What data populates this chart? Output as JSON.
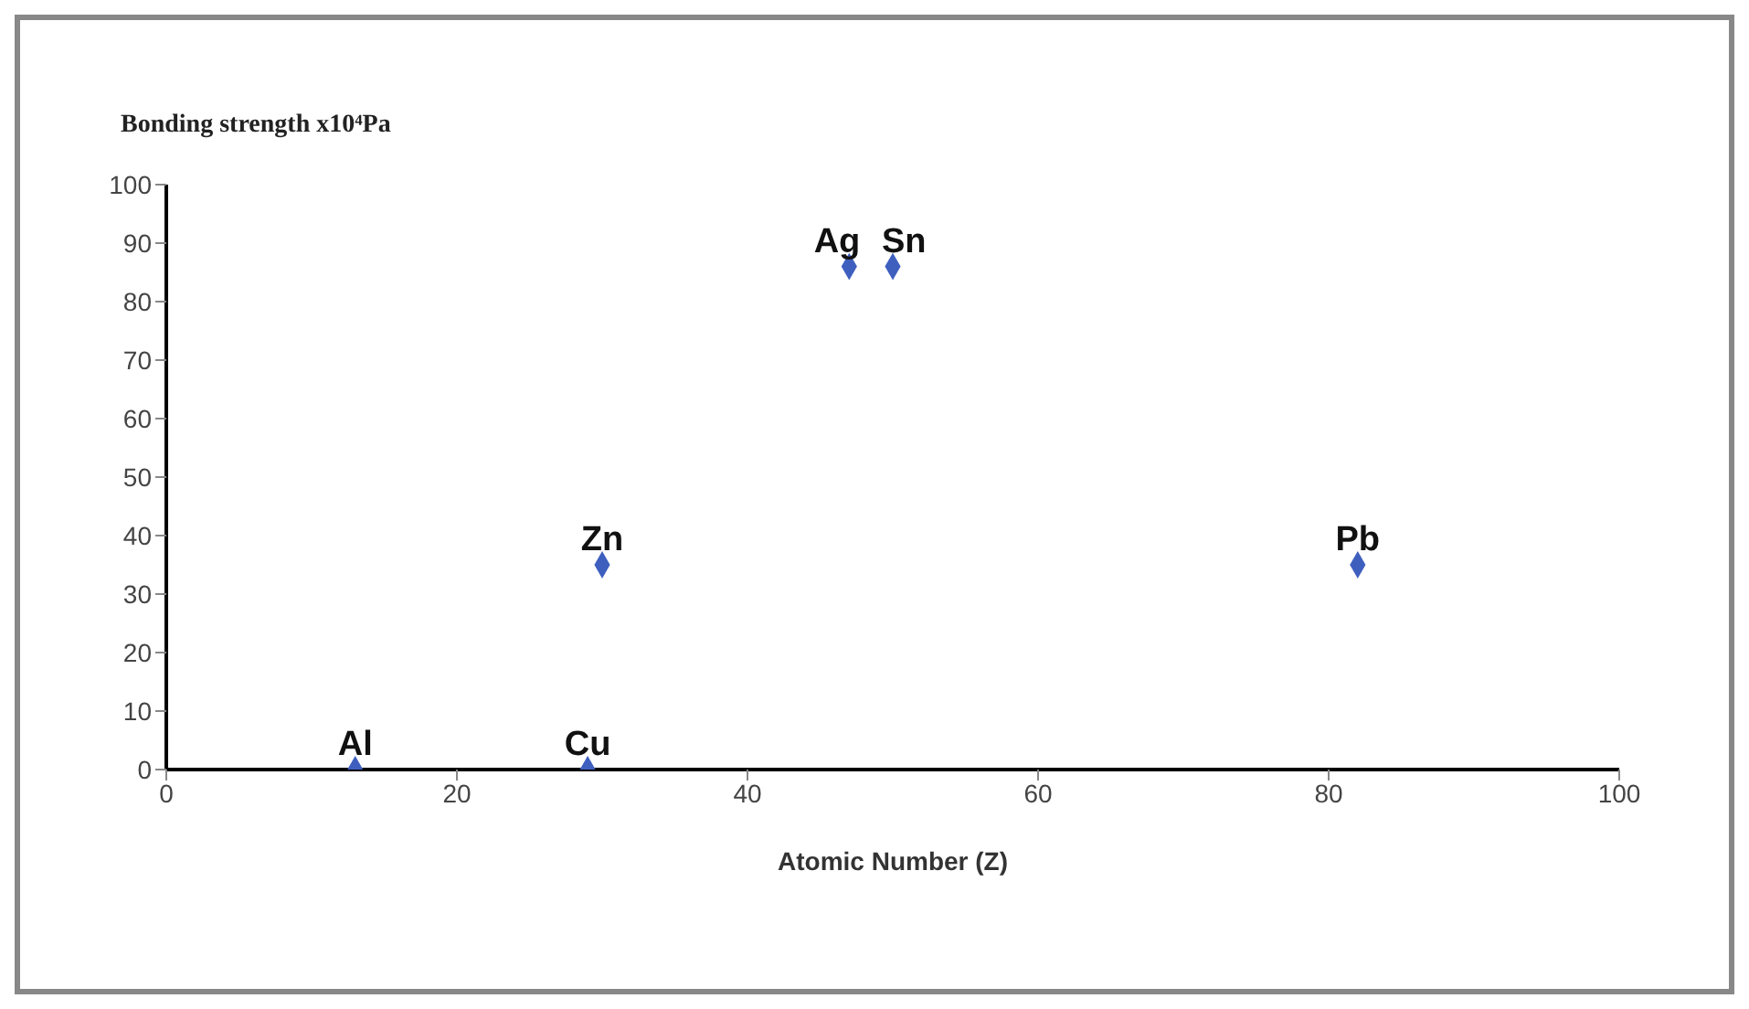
{
  "chart_data": {
    "type": "scatter",
    "ylabel": "Bonding strength x10⁴Pa",
    "xlabel": "Atomic Number (Z)",
    "x": [
      13,
      29,
      30,
      47,
      50,
      82
    ],
    "series": [
      {
        "color": "#3f5fbf",
        "values": [
          0,
          0,
          35,
          86,
          86,
          35
        ]
      }
    ],
    "xlim": [
      0,
      100
    ],
    "xticks": [
      0,
      20,
      40,
      60,
      80,
      100
    ],
    "ylim": [
      0,
      100
    ],
    "yticks": [
      0,
      10,
      20,
      30,
      40,
      50,
      60,
      70,
      80,
      90,
      100
    ],
    "marker": "diamond",
    "grid": false,
    "legend": false,
    "annotations": [
      {
        "text": "Al",
        "x": 13,
        "y": 0
      },
      {
        "text": "Cu",
        "x": 29,
        "y": 0
      },
      {
        "text": "Zn",
        "x": 30,
        "y": 35
      },
      {
        "text": "Ag",
        "x": 47,
        "y": 86
      },
      {
        "text": "Sn",
        "x": 50,
        "y": 86
      },
      {
        "text": "Pb",
        "x": 82,
        "y": 35
      }
    ]
  }
}
